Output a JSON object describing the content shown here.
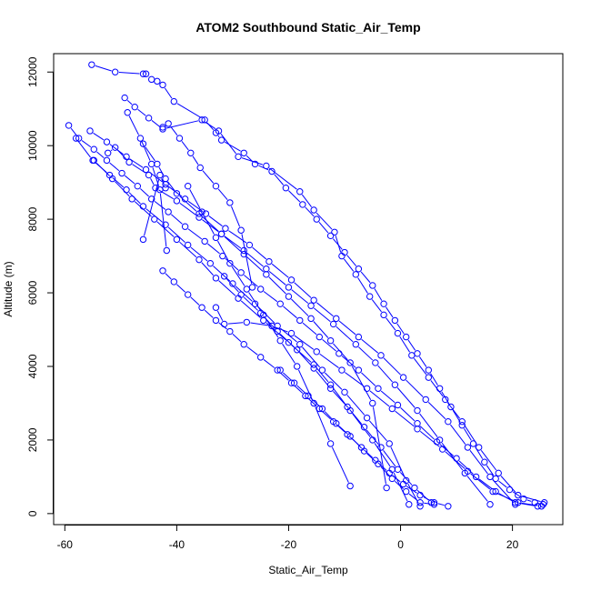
{
  "chart_data": {
    "type": "line",
    "title": "ATOM2 Southbound Static_Air_Temp",
    "xlabel": "Static_Air_Temp",
    "ylabel": "Altitude (m)",
    "xlim": [
      -62,
      29
    ],
    "ylim": [
      -300,
      12500
    ],
    "x_ticks": [
      -60,
      -40,
      -20,
      0,
      20
    ],
    "x_tick_labels": [
      "-60",
      "-40",
      "-20",
      "0",
      "20"
    ],
    "y_ticks": [
      0,
      2000,
      4000,
      6000,
      8000,
      10000,
      12000
    ],
    "y_tick_labels": [
      "0",
      "2000",
      "4000",
      "6000",
      "8000",
      "10000",
      "12000"
    ],
    "grid": false,
    "legend": "none",
    "marker": "open-circle",
    "line_color": "#0000ff",
    "series": [
      {
        "x": [
          -55.2,
          -51.0,
          -46.0,
          -45.5,
          -44.5,
          -43.5,
          -42.5,
          -40.5,
          -35.0,
          -33.0,
          -32.0,
          -28.0,
          -26.0,
          -23.0,
          -20.5,
          -17.5,
          -15.0,
          -12.5,
          -10.0,
          -7.5,
          -5.0,
          -3.0,
          -1.0,
          1.0,
          3.0,
          5.0,
          7.0,
          9.0,
          11.0,
          13.0,
          15.0,
          17.0,
          19.5,
          22.0,
          24.0,
          25.5
        ],
        "y": [
          12200,
          12000,
          11950,
          11950,
          11800,
          11750,
          11650,
          11200,
          10700,
          10350,
          10150,
          9800,
          9500,
          9300,
          8850,
          8400,
          8000,
          7550,
          7100,
          6650,
          6200,
          5700,
          5250,
          4800,
          4350,
          3900,
          3400,
          2900,
          2400,
          1900,
          1400,
          950,
          650,
          400,
          300,
          250
        ]
      },
      {
        "x": [
          -49.3,
          -47.5,
          -45.0,
          -42.5,
          -35.5,
          -32.5,
          -29.0,
          -24.0,
          -18.0,
          -15.5,
          -11.8,
          -10.5,
          -8.0,
          -5.5,
          -3.0,
          -0.5,
          2.0,
          5.0,
          8.0,
          11.0,
          14.0,
          17.5,
          21.0,
          25.7
        ],
        "y": [
          11300,
          11050,
          10750,
          10450,
          10700,
          10400,
          9700,
          9450,
          8750,
          8250,
          7650,
          7000,
          6500,
          5900,
          5400,
          4900,
          4300,
          3700,
          3100,
          2500,
          1800,
          1100,
          500,
          300
        ]
      },
      {
        "x": [
          -59.3,
          -57.5,
          -54.8,
          -52.5,
          -49.8,
          -47.0,
          -44.5,
          -41.5,
          -38.5,
          -35.0,
          -31.8,
          -28.5,
          -25.0,
          -21.5,
          -18.0,
          -14.5,
          -11.0,
          -7.5,
          -4.0,
          -0.5,
          3.0,
          6.5,
          10.0,
          13.5,
          17.0,
          20.5,
          24.5
        ],
        "y": [
          10550,
          10200,
          9900,
          9600,
          9250,
          8900,
          8550,
          8200,
          7800,
          7400,
          7000,
          6550,
          6100,
          5700,
          5250,
          4800,
          4350,
          3900,
          3400,
          2950,
          2450,
          1950,
          1500,
          1000,
          600,
          300,
          200
        ]
      },
      {
        "x": [
          -55.5,
          -52.5,
          -49.0,
          -45.5,
          -42.0,
          -38.5,
          -34.8,
          -31.3,
          -27.0,
          -23.5,
          -19.5,
          -15.5,
          -11.5,
          -7.5,
          -3.5,
          0.5,
          4.5,
          8.5,
          12.0,
          16.0,
          20.5
        ],
        "y": [
          10400,
          10100,
          9700,
          9350,
          8950,
          8550,
          8150,
          7750,
          7300,
          6850,
          6350,
          5800,
          5300,
          4800,
          4300,
          3700,
          3100,
          2500,
          1800,
          1000,
          250
        ]
      },
      {
        "x": [
          -52.3,
          -51.0,
          -48.5,
          -45.0,
          -43.8,
          -40.0,
          -36.0,
          -32.0,
          -28.0,
          -24.0,
          -20.0,
          -16.0,
          -12.0,
          -8.0,
          -4.5,
          -1.0,
          3.0,
          7.0,
          11.5,
          16.0
        ],
        "y": [
          9800,
          9950,
          9550,
          9200,
          8850,
          8500,
          8050,
          7600,
          7150,
          6650,
          6150,
          5650,
          5150,
          4600,
          4100,
          3500,
          2800,
          2000,
          1100,
          250
        ]
      },
      {
        "x": [
          -58.0,
          -55.0,
          -52.0,
          -49.0,
          -46.0,
          -42.0,
          -38.0,
          -34.0,
          -30.0,
          -26.0,
          -22.0,
          -18.0,
          -14.0,
          -10.0,
          -6.0,
          -2.0,
          1.0,
          3.5
        ],
        "y": [
          10200,
          9600,
          9200,
          8800,
          8350,
          7850,
          7300,
          6800,
          6250,
          5700,
          5100,
          4600,
          3900,
          3300,
          2600,
          1900,
          900,
          200
        ]
      },
      {
        "x": [
          -54.8,
          -51.5,
          -48.0,
          -44.0,
          -40.0,
          -36.0,
          -33.0,
          -29.0,
          -24.5,
          -20.0,
          -15.5,
          -12.5,
          -9.0,
          -5.0,
          -1.5,
          1.5
        ],
        "y": [
          9600,
          9100,
          8550,
          8000,
          7450,
          6900,
          6400,
          5850,
          5250,
          4650,
          4050,
          3500,
          2800,
          2000,
          1200,
          250
        ]
      },
      {
        "x": [
          -42.5,
          -40.5,
          -38.0,
          -35.5,
          -33.0,
          -30.5,
          -28.0,
          -25.0,
          -22.0,
          -19.5,
          -17.0,
          -14.5,
          -12.0,
          -9.5,
          -7.0,
          -4.5,
          -2.0,
          0.5,
          3.5,
          6.0,
          8.5
        ],
        "y": [
          6600,
          6300,
          5950,
          5600,
          5250,
          4950,
          4600,
          4250,
          3900,
          3550,
          3200,
          2850,
          2500,
          2150,
          1800,
          1450,
          1100,
          800,
          500,
          300,
          200
        ]
      },
      {
        "x": [
          -46.0,
          -43.0,
          -42.0
        ],
        "y": [
          7450,
          9200,
          8850
        ]
      },
      {
        "x": [
          -42.5,
          -41.5,
          -39.5,
          -37.5,
          -35.8,
          -33.0,
          -30.5,
          -28.5,
          -26.5
        ],
        "y": [
          10500,
          10600,
          10200,
          9800,
          9400,
          8900,
          8450,
          7700,
          6150
        ]
      },
      {
        "x": [
          -46.0,
          -43.5,
          -42.0,
          -40.0,
          -36.0,
          -32.0,
          -28.0,
          -24.0,
          -20.0,
          -16.0,
          -12.5,
          -9.0,
          -5.0,
          -2.5
        ],
        "y": [
          10050,
          9500,
          9100,
          8700,
          8150,
          7600,
          7050,
          6500,
          5900,
          5300,
          4700,
          4100,
          3000,
          700
        ]
      },
      {
        "x": [
          -48.8,
          -46.5,
          -44.5,
          -43.0,
          -41.8
        ],
        "y": [
          10900,
          10200,
          9500,
          8800,
          7150
        ]
      },
      {
        "x": [
          -38.0,
          -35.5,
          -33.0,
          -30.5,
          -27.5,
          -24.5,
          -21.5,
          -18.5,
          -15.5,
          -12.5,
          -9.0
        ],
        "y": [
          8900,
          8200,
          7500,
          6800,
          6100,
          5400,
          4700,
          4000,
          3000,
          1900,
          750
        ]
      },
      {
        "x": [
          -31.5,
          -28.5,
          -25.0,
          -22.0,
          -18.5,
          -15.5,
          -12.5,
          -9.5,
          -6.5,
          -3.5,
          -0.5,
          2.5,
          5.5
        ],
        "y": [
          6450,
          5950,
          5450,
          4950,
          4450,
          3950,
          3400,
          2900,
          2350,
          1800,
          1200,
          700,
          300
        ]
      },
      {
        "x": [
          -21.5,
          -19.0,
          -16.5,
          -14.0,
          -11.5,
          -9.0,
          -6.5,
          -4.0,
          -1.5,
          1.0,
          3.5,
          6.0
        ],
        "y": [
          3900,
          3550,
          3200,
          2850,
          2450,
          2100,
          1700,
          1350,
          950,
          600,
          300,
          250
        ]
      },
      {
        "x": [
          -33.0,
          -31.5,
          -27.5,
          -23.0,
          -19.5,
          -15.0,
          -10.5,
          -6.0,
          -1.5,
          3.0,
          7.5,
          12.0,
          16.5,
          21.0,
          25.2
        ],
        "y": [
          5600,
          5150,
          5200,
          5100,
          4900,
          4400,
          3900,
          3400,
          2850,
          2300,
          1750,
          1150,
          600,
          300,
          200
        ]
      }
    ]
  }
}
